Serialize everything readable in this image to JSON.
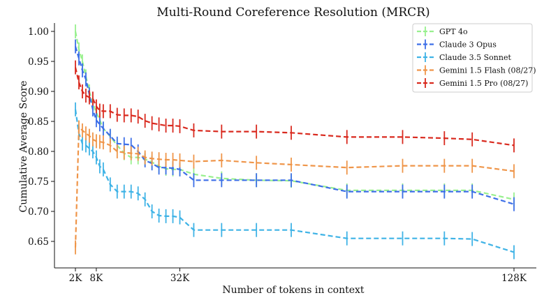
{
  "chart_data": {
    "type": "line",
    "title": "Multi-Round Coreference Resolution (MRCR)",
    "xlabel": "Number of tokens in context",
    "ylabel": "Cumulative Average Score",
    "xlim": [
      0,
      134
    ],
    "ylim": [
      0.62,
      1.02
    ],
    "xticks": [
      {
        "value": 2,
        "label": "2K"
      },
      {
        "value": 8,
        "label": "8K"
      },
      {
        "value": 32,
        "label": "32K"
      },
      {
        "value": 128,
        "label": "128K"
      }
    ],
    "yticks": [
      {
        "value": 0.65,
        "label": "0.65"
      },
      {
        "value": 0.7,
        "label": "0.70"
      },
      {
        "value": 0.75,
        "label": "0.75"
      },
      {
        "value": 0.8,
        "label": "0.80"
      },
      {
        "value": 0.85,
        "label": "0.85"
      },
      {
        "value": 0.9,
        "label": "0.90"
      },
      {
        "value": 0.95,
        "label": "0.95"
      },
      {
        "value": 1.0,
        "label": "1.00"
      }
    ],
    "legend_position": "top-right",
    "grid": false,
    "series": [
      {
        "name": "GPT 4o",
        "color": "#98f08e",
        "x": [
          2,
          3,
          4,
          5,
          6,
          7,
          8,
          9,
          10,
          12,
          14,
          16,
          18,
          20,
          22,
          24,
          26,
          28,
          30,
          32,
          36,
          44,
          54,
          64,
          80,
          96,
          108,
          116,
          128
        ],
        "y": [
          1.0,
          0.97,
          0.95,
          0.925,
          0.9,
          0.88,
          0.865,
          0.852,
          0.838,
          0.825,
          0.81,
          0.797,
          0.79,
          0.79,
          0.787,
          0.782,
          0.775,
          0.771,
          0.77,
          0.77,
          0.762,
          0.755,
          0.752,
          0.751,
          0.735,
          0.735,
          0.735,
          0.735,
          0.72
        ]
      },
      {
        "name": "Claude 3 Opus",
        "color": "#3d6fe8",
        "x": [
          2,
          3,
          4,
          5,
          6,
          7,
          8,
          9,
          10,
          12,
          14,
          16,
          18,
          20,
          22,
          24,
          26,
          28,
          30,
          32,
          36,
          44,
          54,
          64,
          80,
          96,
          108,
          116,
          128
        ],
        "y": [
          0.975,
          0.955,
          0.935,
          0.92,
          0.895,
          0.87,
          0.852,
          0.845,
          0.838,
          0.826,
          0.813,
          0.812,
          0.811,
          0.8,
          0.785,
          0.78,
          0.773,
          0.773,
          0.772,
          0.77,
          0.752,
          0.752,
          0.752,
          0.752,
          0.733,
          0.733,
          0.733,
          0.733,
          0.712
        ]
      },
      {
        "name": "Claude 3.5 Sonnet",
        "color": "#3fb3e6",
        "x": [
          2,
          3,
          4,
          5,
          6,
          7,
          8,
          9,
          10,
          12,
          14,
          16,
          18,
          20,
          22,
          24,
          26,
          28,
          30,
          32,
          36,
          44,
          54,
          64,
          80,
          96,
          108,
          116,
          128
        ],
        "y": [
          0.87,
          0.83,
          0.813,
          0.81,
          0.805,
          0.8,
          0.79,
          0.775,
          0.77,
          0.745,
          0.733,
          0.733,
          0.733,
          0.73,
          0.72,
          0.7,
          0.693,
          0.692,
          0.692,
          0.69,
          0.669,
          0.669,
          0.669,
          0.669,
          0.655,
          0.655,
          0.655,
          0.654,
          0.632
        ]
      },
      {
        "name": "Gemini 1.5 Flash (08/27)",
        "color": "#ef9549",
        "x": [
          2,
          3,
          4,
          5,
          6,
          7,
          8,
          9,
          10,
          12,
          14,
          16,
          18,
          20,
          22,
          24,
          26,
          28,
          30,
          32,
          36,
          44,
          54,
          64,
          80,
          96,
          108,
          116,
          128
        ],
        "y": [
          0.64,
          0.84,
          0.835,
          0.83,
          0.826,
          0.82,
          0.817,
          0.816,
          0.815,
          0.81,
          0.8,
          0.798,
          0.797,
          0.796,
          0.79,
          0.788,
          0.787,
          0.786,
          0.786,
          0.785,
          0.783,
          0.785,
          0.781,
          0.778,
          0.773,
          0.776,
          0.776,
          0.776,
          0.767
        ]
      },
      {
        "name": "Gemini 1.5 Pro (08/27)",
        "color": "#d92a1f",
        "x": [
          2,
          3,
          4,
          5,
          6,
          7,
          8,
          9,
          10,
          12,
          14,
          16,
          18,
          20,
          22,
          24,
          26,
          28,
          30,
          32,
          36,
          44,
          54,
          64,
          80,
          96,
          108,
          116,
          128
        ],
        "y": [
          0.94,
          0.915,
          0.9,
          0.893,
          0.89,
          0.888,
          0.875,
          0.868,
          0.867,
          0.867,
          0.861,
          0.86,
          0.86,
          0.858,
          0.851,
          0.847,
          0.845,
          0.843,
          0.843,
          0.842,
          0.835,
          0.833,
          0.833,
          0.831,
          0.824,
          0.824,
          0.822,
          0.82,
          0.81
        ]
      }
    ]
  }
}
